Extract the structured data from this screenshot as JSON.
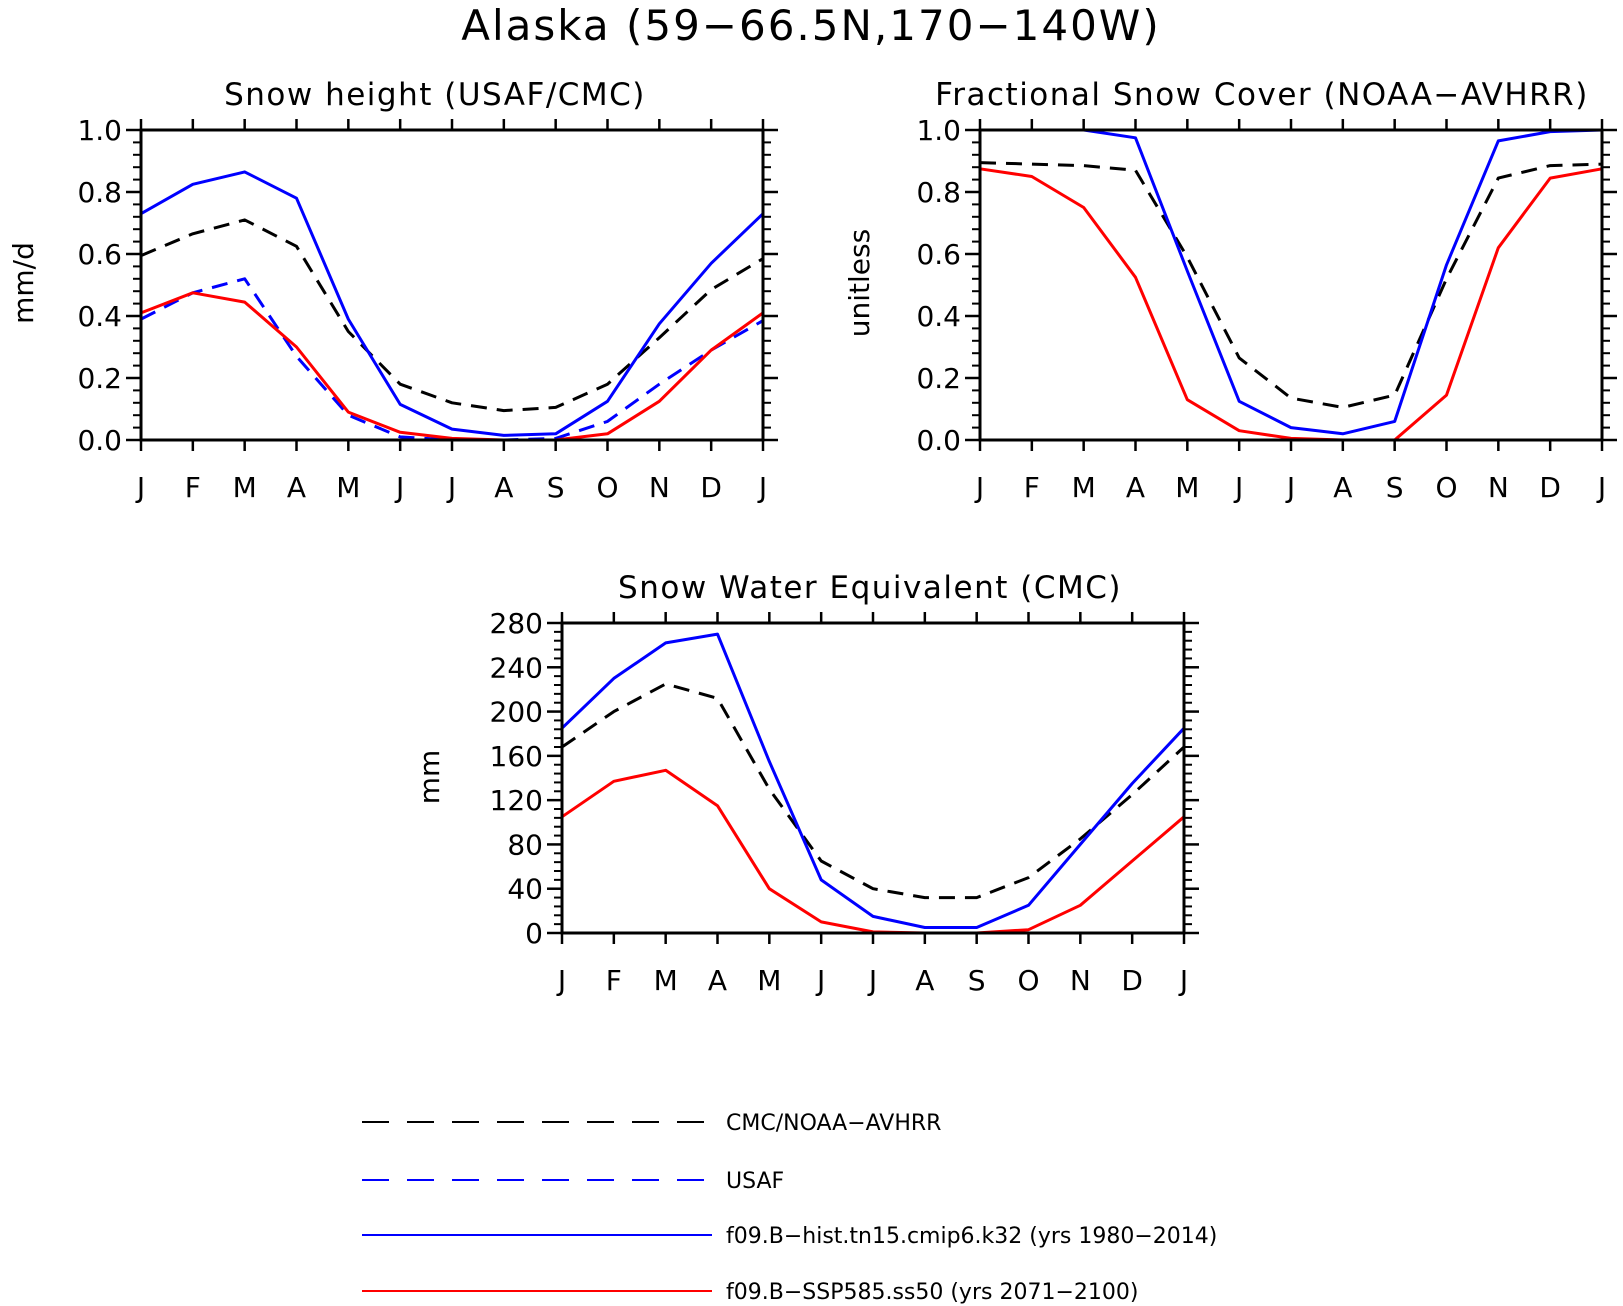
{
  "page": {
    "title": "Alaska (59−66.5N,170−140W)"
  },
  "colors": {
    "obs": "#000000",
    "usaf": "#0000ff",
    "hist": "#0000ff",
    "ssp": "#ff0000"
  },
  "chart_data": [
    {
      "type": "line",
      "title": "Snow height (USAF/CMC)",
      "xlabel": "",
      "ylabel": "mm/d",
      "categories": [
        "J",
        "F",
        "M",
        "A",
        "M",
        "J",
        "J",
        "A",
        "S",
        "O",
        "N",
        "D",
        "J"
      ],
      "ylim": [
        0,
        1.0
      ],
      "yticks": [
        "0.0",
        "0.2",
        "0.4",
        "0.6",
        "0.8",
        "1.0"
      ],
      "series": [
        {
          "key": "obs",
          "values": [
            0.595,
            0.665,
            0.71,
            0.625,
            0.35,
            0.18,
            0.12,
            0.095,
            0.105,
            0.18,
            0.33,
            0.485,
            0.585
          ]
        },
        {
          "key": "usaf",
          "values": [
            0.39,
            0.475,
            0.52,
            0.27,
            0.08,
            0.01,
            0.0,
            0.0,
            0.005,
            0.06,
            0.18,
            0.29,
            0.385
          ]
        },
        {
          "key": "hist",
          "values": [
            0.73,
            0.825,
            0.865,
            0.78,
            0.39,
            0.115,
            0.035,
            0.015,
            0.02,
            0.125,
            0.375,
            0.57,
            0.73
          ]
        },
        {
          "key": "ssp",
          "values": [
            0.41,
            0.475,
            0.445,
            0.3,
            0.09,
            0.025,
            0.005,
            0.0,
            0.0,
            0.02,
            0.125,
            0.29,
            0.41
          ]
        }
      ]
    },
    {
      "type": "line",
      "title": "Fractional Snow Cover (NOAA−AVHRR)",
      "xlabel": "",
      "ylabel": "unitless",
      "categories": [
        "J",
        "F",
        "M",
        "A",
        "M",
        "J",
        "J",
        "A",
        "S",
        "O",
        "N",
        "D",
        "J"
      ],
      "ylim": [
        0,
        1.0
      ],
      "yticks": [
        "0.0",
        "0.2",
        "0.4",
        "0.6",
        "0.8",
        "1.0"
      ],
      "series": [
        {
          "key": "obs",
          "values": [
            0.895,
            0.89,
            0.885,
            0.87,
            0.59,
            0.265,
            0.135,
            0.105,
            0.145,
            0.52,
            0.845,
            0.885,
            0.89
          ]
        },
        {
          "key": "hist",
          "values": [
            1.0,
            1.0,
            1.0,
            0.975,
            0.545,
            0.125,
            0.04,
            0.02,
            0.06,
            0.565,
            0.965,
            0.995,
            1.0
          ]
        },
        {
          "key": "ssp",
          "values": [
            0.875,
            0.85,
            0.75,
            0.525,
            0.13,
            0.03,
            0.005,
            0.0,
            0.0,
            0.145,
            0.62,
            0.845,
            0.875
          ]
        }
      ]
    },
    {
      "type": "line",
      "title": "Snow Water Equivalent (CMC)",
      "xlabel": "",
      "ylabel": "mm",
      "categories": [
        "J",
        "F",
        "M",
        "A",
        "M",
        "J",
        "J",
        "A",
        "S",
        "O",
        "N",
        "D",
        "J"
      ],
      "ylim": [
        0,
        280
      ],
      "yticks": [
        "0",
        "40",
        "80",
        "120",
        "160",
        "200",
        "240",
        "280"
      ],
      "series": [
        {
          "key": "obs",
          "values": [
            168,
            200,
            225,
            212,
            130,
            65,
            40,
            32,
            32,
            50,
            85,
            125,
            168
          ]
        },
        {
          "key": "hist",
          "values": [
            185,
            230,
            262,
            270,
            155,
            48,
            15,
            5,
            5,
            25,
            80,
            135,
            185
          ]
        },
        {
          "key": "ssp",
          "values": [
            105,
            137,
            147,
            115,
            40,
            10,
            1,
            0,
            0,
            3,
            25,
            65,
            105
          ]
        }
      ]
    }
  ],
  "legend": {
    "items": [
      {
        "key": "obs",
        "label": "CMC/NOAA−AVHRR",
        "style": "dashed"
      },
      {
        "key": "usaf",
        "label": "USAF",
        "style": "dashed"
      },
      {
        "key": "hist",
        "label": "f09.B−hist.tn15.cmip6.k32 (yrs 1980−2014)",
        "style": "solid"
      },
      {
        "key": "ssp",
        "label": "f09.B−SSP585.ss50 (yrs 2071−2100)",
        "style": "solid"
      }
    ]
  }
}
